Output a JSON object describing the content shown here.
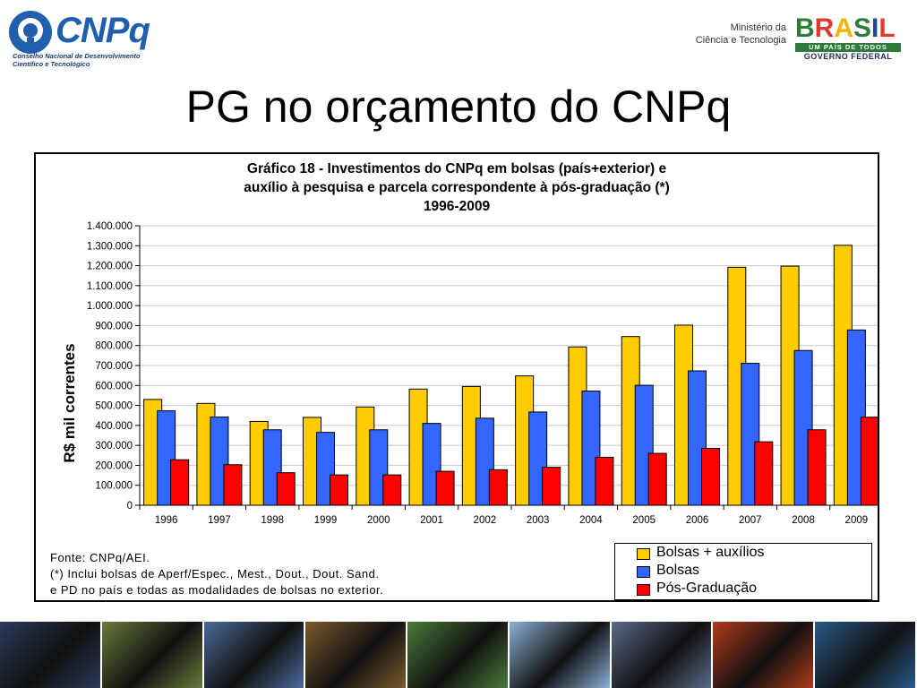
{
  "header": {
    "cnpq_name": "CNPq",
    "cnpq_subtitle_1": "Conselho Nacional de Desenvolvimento",
    "cnpq_subtitle_2": "Científico e Tecnológico",
    "ministry_1": "Ministério da",
    "ministry_2": "Ciência e Tecnologia",
    "brasil_letters": [
      "B",
      "R",
      "A",
      "S",
      "I",
      "L"
    ],
    "brasil_colors": [
      "#2d7a3a",
      "#e03a2a",
      "#f0b400",
      "#2d7a3a",
      "#1a4a9a",
      "#e03a2a"
    ],
    "um_pais": "UM PAÍS DE TODOS",
    "governo": "GOVERNO FEDERAL"
  },
  "page_title": "PG no orçamento do CNPq",
  "chart_data": {
    "type": "bar",
    "title_lines": [
      "Gráfico 18 - Investimentos do CNPq em bolsas (país+exterior) e",
      "auxílio à pesquisa e parcela correspondente à pós-graduação (*)",
      "1996-2009"
    ],
    "ylabel": "R$ mil correntes",
    "xlabel": "",
    "ylim": [
      0,
      1400000
    ],
    "y_tick_step": 100000,
    "y_tick_labels": [
      "0",
      "100.000",
      "200.000",
      "300.000",
      "400.000",
      "500.000",
      "600.000",
      "700.000",
      "800.000",
      "900.000",
      "1.000.000",
      "1.100.000",
      "1.200.000",
      "1.300.000",
      "1.400.000"
    ],
    "grid": true,
    "categories": [
      "1996",
      "1997",
      "1998",
      "1999",
      "2000",
      "2001",
      "2002",
      "2003",
      "2004",
      "2005",
      "2006",
      "2007",
      "2008",
      "2009"
    ],
    "series": [
      {
        "name": "Bolsas + auxílios",
        "color": "#ffcc00",
        "values": [
          530000,
          510000,
          420000,
          440000,
          492000,
          582000,
          595000,
          648000,
          793000,
          845000,
          902000,
          1192000,
          1198000,
          1302000
        ]
      },
      {
        "name": "Bolsas",
        "color": "#3366ff",
        "values": [
          473000,
          442000,
          378000,
          365000,
          378000,
          410000,
          436000,
          467000,
          572000,
          601000,
          673000,
          711000,
          775000,
          878000
        ]
      },
      {
        "name": "Pós-Graduação",
        "color": "#ff0000",
        "values": [
          228000,
          203000,
          163000,
          152000,
          152000,
          170000,
          178000,
          190000,
          240000,
          260000,
          285000,
          318000,
          378000,
          441000
        ]
      }
    ],
    "legend_position": "bottom-right"
  },
  "source_notes": [
    "Fonte: CNPq/AEI.",
    "(*) Inclui bolsas de Aperf/Espec., Mest., Dout., Dout. Sand.",
    "e PD no país e todas as modalidades de bolsas no exterior."
  ],
  "bottom_strip": {
    "tile_colors": [
      "#2a3a5a",
      "#6a7a3a",
      "#4a6a9a",
      "#7a5a2a",
      "#4a7a3a",
      "#8ab0d8",
      "#5a6a8a",
      "#b03a1a",
      "#2a5a8a"
    ]
  }
}
